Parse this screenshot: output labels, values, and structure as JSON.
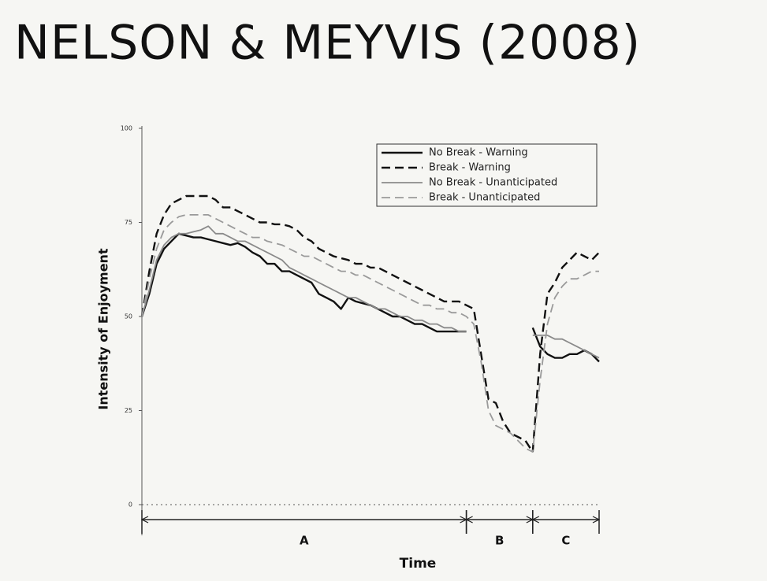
{
  "chart_data": {
    "type": "line",
    "title": "NELSON & MEYVIS (2008)",
    "x_label": "Time",
    "y_label": "Intensity of Enjoyment",
    "x": [
      0,
      1,
      2,
      3,
      4,
      5,
      6,
      7,
      8,
      9,
      10,
      11,
      12,
      13,
      14,
      15,
      16,
      17,
      18,
      19,
      20,
      21,
      22,
      23,
      24,
      25,
      26,
      27,
      28,
      29,
      30,
      31,
      32,
      33,
      34,
      35,
      36,
      37,
      38,
      39,
      40,
      41,
      42,
      43,
      44,
      45,
      46,
      47,
      48,
      49,
      50,
      51,
      52,
      53,
      54,
      55,
      56,
      57,
      58,
      59,
      60,
      61,
      62
    ],
    "xlim": [
      0,
      62
    ],
    "ylim": [
      0,
      100
    ],
    "yticks": [
      0,
      25,
      50,
      75,
      100
    ],
    "zero_line": true,
    "legend_position": "upper right",
    "segments": [
      {
        "label": "A",
        "start": 0,
        "end": 44
      },
      {
        "label": "B",
        "start": 44,
        "end": 53
      },
      {
        "label": "C",
        "start": 53,
        "end": 62
      }
    ],
    "series": [
      {
        "name": "No Break - Warning",
        "color": "#111111",
        "dashed": false,
        "values": [
          50,
          56,
          64,
          68,
          70,
          72,
          71.5,
          71,
          71,
          70.5,
          70,
          69.5,
          69,
          69.5,
          68.5,
          67,
          66,
          64,
          64,
          62,
          62,
          61,
          60,
          59,
          56,
          55,
          54,
          52,
          55,
          54,
          53.5,
          53,
          52,
          51,
          50,
          50,
          49,
          48,
          48,
          47,
          46,
          46,
          46,
          46,
          46,
          null,
          null,
          null,
          null,
          null,
          null,
          null,
          null,
          47,
          42,
          40,
          39,
          39,
          40,
          40,
          41,
          40,
          38
        ]
      },
      {
        "name": "Break - Warning",
        "color": "#111111",
        "dashed": true,
        "values": [
          50,
          62,
          72,
          77,
          80,
          81,
          82,
          82,
          82,
          82,
          81,
          79,
          79,
          78,
          77,
          76,
          75,
          75,
          74.5,
          74.5,
          74,
          73,
          71,
          70,
          68,
          67,
          66,
          65.5,
          65,
          64,
          64,
          63,
          63,
          62,
          61,
          60,
          59,
          58,
          57,
          56,
          55,
          54,
          54,
          54,
          53,
          52,
          40,
          28,
          27,
          22,
          19,
          18,
          17,
          14,
          40,
          56,
          59,
          63,
          65,
          67,
          66,
          65,
          67
        ]
      },
      {
        "name": "No Break - Unanticipated",
        "color": "#8a8a8a",
        "dashed": false,
        "values": [
          50,
          57,
          65,
          69,
          71,
          72,
          72,
          72.5,
          73,
          74,
          72,
          72,
          71,
          70,
          70,
          69,
          68,
          67,
          66,
          65,
          63,
          62,
          61,
          60,
          59,
          58,
          57,
          56,
          55,
          55,
          54,
          53,
          52,
          52,
          51,
          50,
          50,
          49,
          49,
          48,
          48,
          47,
          47,
          46,
          46,
          null,
          null,
          null,
          null,
          null,
          null,
          null,
          null,
          45,
          45,
          45,
          44,
          44,
          43,
          42,
          41,
          40,
          39
        ]
      },
      {
        "name": "Break - Unanticipated",
        "color": "#9a9a9a",
        "dashed": true,
        "values": [
          50,
          60,
          68,
          73,
          75,
          76.5,
          77,
          77,
          77,
          77,
          76,
          75,
          74,
          73,
          72,
          71,
          71,
          70,
          69.5,
          69,
          68,
          67,
          66,
          66,
          65,
          64,
          63,
          62,
          62,
          61,
          61,
          60,
          59,
          58,
          57,
          56,
          55,
          54,
          53,
          53,
          52,
          52,
          51,
          51,
          50,
          48,
          38,
          25,
          21,
          20,
          19,
          17,
          15,
          14,
          33,
          48,
          55,
          58,
          60,
          60,
          61,
          62,
          62
        ]
      }
    ]
  }
}
